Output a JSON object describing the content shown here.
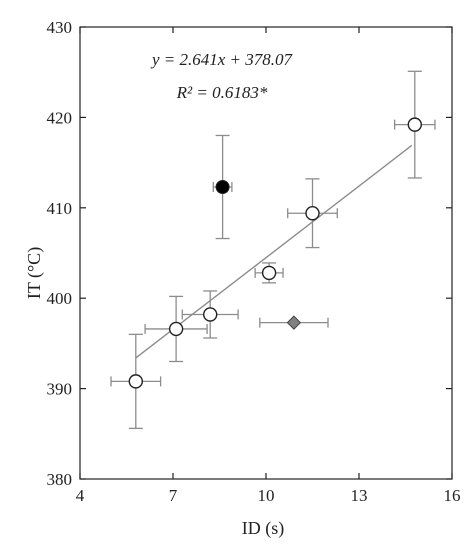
{
  "chart_data": {
    "type": "scatter",
    "xlabel": "ID (s)",
    "ylabel": "IT (°C)",
    "xlim": [
      4,
      16
    ],
    "ylim": [
      380,
      430
    ],
    "xticks": [
      4,
      7,
      10,
      13,
      16
    ],
    "yticks": [
      380,
      390,
      400,
      410,
      420,
      430
    ],
    "grid": false,
    "legend": "none",
    "annotations": {
      "equation": "y = 2.641x + 378.07",
      "r_squared": "R² = 0.6183*"
    },
    "fit_line": {
      "slope": 2.641,
      "intercept": 378.07,
      "x_range": [
        5.8,
        14.7
      ]
    },
    "series": [
      {
        "marker": "open-circle",
        "points": [
          {
            "x": 5.8,
            "y": 390.8,
            "xerr": 0.8,
            "yerr": 5.2
          },
          {
            "x": 7.1,
            "y": 396.6,
            "xerr": 1.0,
            "yerr": 3.6
          },
          {
            "x": 8.2,
            "y": 398.2,
            "xerr": 0.9,
            "yerr": 2.6
          },
          {
            "x": 10.1,
            "y": 402.8,
            "xerr": 0.45,
            "yerr": 1.1
          },
          {
            "x": 11.5,
            "y": 409.4,
            "xerr": 0.8,
            "yerr": 3.8
          },
          {
            "x": 14.8,
            "y": 419.2,
            "xerr": 0.65,
            "yerr": 5.9
          }
        ]
      },
      {
        "marker": "filled-circle",
        "points": [
          {
            "x": 8.6,
            "y": 412.3,
            "xerr": 0.3,
            "yerr": 5.7
          }
        ]
      },
      {
        "marker": "gray-diamond",
        "points": [
          {
            "x": 10.9,
            "y": 397.3,
            "xerr": 1.1,
            "yerr": 0
          }
        ]
      }
    ]
  },
  "colors": {
    "axis": "#222222",
    "errorbar": "#8c8c8c",
    "fit": "#8c8c8c",
    "filled_marker": "#000000",
    "diamond_marker": "#808080"
  }
}
